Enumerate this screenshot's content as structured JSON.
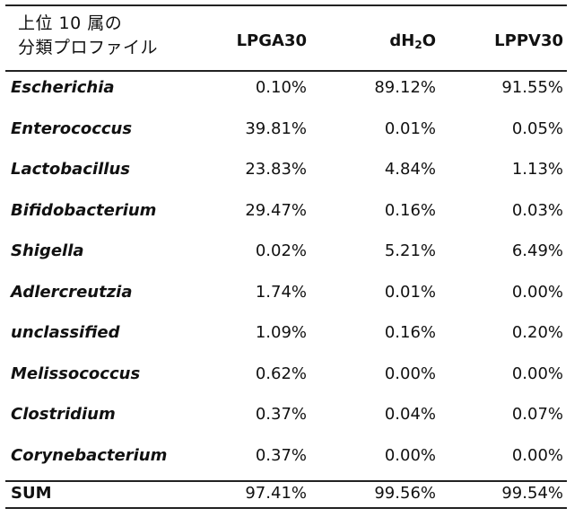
{
  "table": {
    "header": {
      "title_line1": "上位 10 属の",
      "title_line2": "分類プロファイル",
      "col1": "LPGA30",
      "col2_prefix": "dH",
      "col2_sub": "2",
      "col2_suffix": "O",
      "col3": "LPPV30"
    },
    "rows": [
      {
        "genus": "Escherichia",
        "v1": "0.10%",
        "v2": "89.12%",
        "v3": "91.55%"
      },
      {
        "genus": "Enterococcus",
        "v1": "39.81%",
        "v2": "0.01%",
        "v3": "0.05%"
      },
      {
        "genus": "Lactobacillus",
        "v1": "23.83%",
        "v2": "4.84%",
        "v3": "1.13%"
      },
      {
        "genus": "Bifidobacterium",
        "v1": "29.47%",
        "v2": "0.16%",
        "v3": "0.03%"
      },
      {
        "genus": "Shigella",
        "v1": "0.02%",
        "v2": "5.21%",
        "v3": "6.49%"
      },
      {
        "genus": "Adlercreutzia",
        "v1": "1.74%",
        "v2": "0.01%",
        "v3": "0.00%"
      },
      {
        "genus": "unclassified",
        "v1": "1.09%",
        "v2": "0.16%",
        "v3": "0.20%"
      },
      {
        "genus": "Melissococcus",
        "v1": "0.62%",
        "v2": "0.00%",
        "v3": "0.00%"
      },
      {
        "genus": "Clostridium",
        "v1": "0.37%",
        "v2": "0.04%",
        "v3": "0.07%"
      },
      {
        "genus": "Corynebacterium",
        "v1": "0.37%",
        "v2": "0.00%",
        "v3": "0.00%"
      }
    ],
    "sum": {
      "label": "SUM",
      "v1": "97.41%",
      "v2": "99.56%",
      "v3": "99.54%"
    }
  }
}
